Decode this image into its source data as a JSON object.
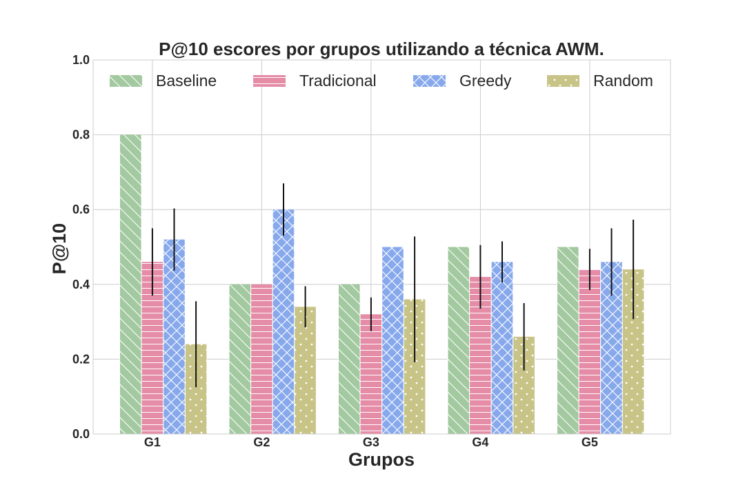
{
  "chart_data": {
    "type": "bar",
    "title": "P@10 escores por grupos utilizando a técnica AWM.",
    "xlabel": "Grupos",
    "ylabel": "P@10",
    "categories": [
      "G1",
      "G2",
      "G3",
      "G4",
      "G5"
    ],
    "ylim": [
      0,
      1.0
    ],
    "yticks": [
      "0.0",
      "0.2",
      "0.4",
      "0.6",
      "0.8",
      "1.0"
    ],
    "grid": true,
    "legend_position": "top",
    "series": [
      {
        "name": "Baseline",
        "color": "#a3c9a0",
        "pattern": "diagonal-backslash",
        "values": [
          0.8,
          0.4,
          0.4,
          0.5,
          0.5
        ],
        "errors": null
      },
      {
        "name": "Tradicional",
        "color": "#e58ca7",
        "pattern": "horizontal-lines",
        "values": [
          0.46,
          0.4,
          0.32,
          0.42,
          0.44
        ],
        "errors": [
          0.09,
          0.0,
          0.045,
          0.085,
          0.055
        ]
      },
      {
        "name": "Greedy",
        "color": "#87a9ec",
        "pattern": "crosshatch",
        "values": [
          0.52,
          0.6,
          0.5,
          0.46,
          0.46
        ],
        "errors": [
          0.083,
          0.07,
          0.0,
          0.055,
          0.09
        ]
      },
      {
        "name": "Random",
        "color": "#c8c386",
        "pattern": "dots",
        "values": [
          0.24,
          0.34,
          0.36,
          0.26,
          0.44
        ],
        "errors": [
          0.115,
          0.055,
          0.168,
          0.09,
          0.133
        ]
      }
    ]
  }
}
